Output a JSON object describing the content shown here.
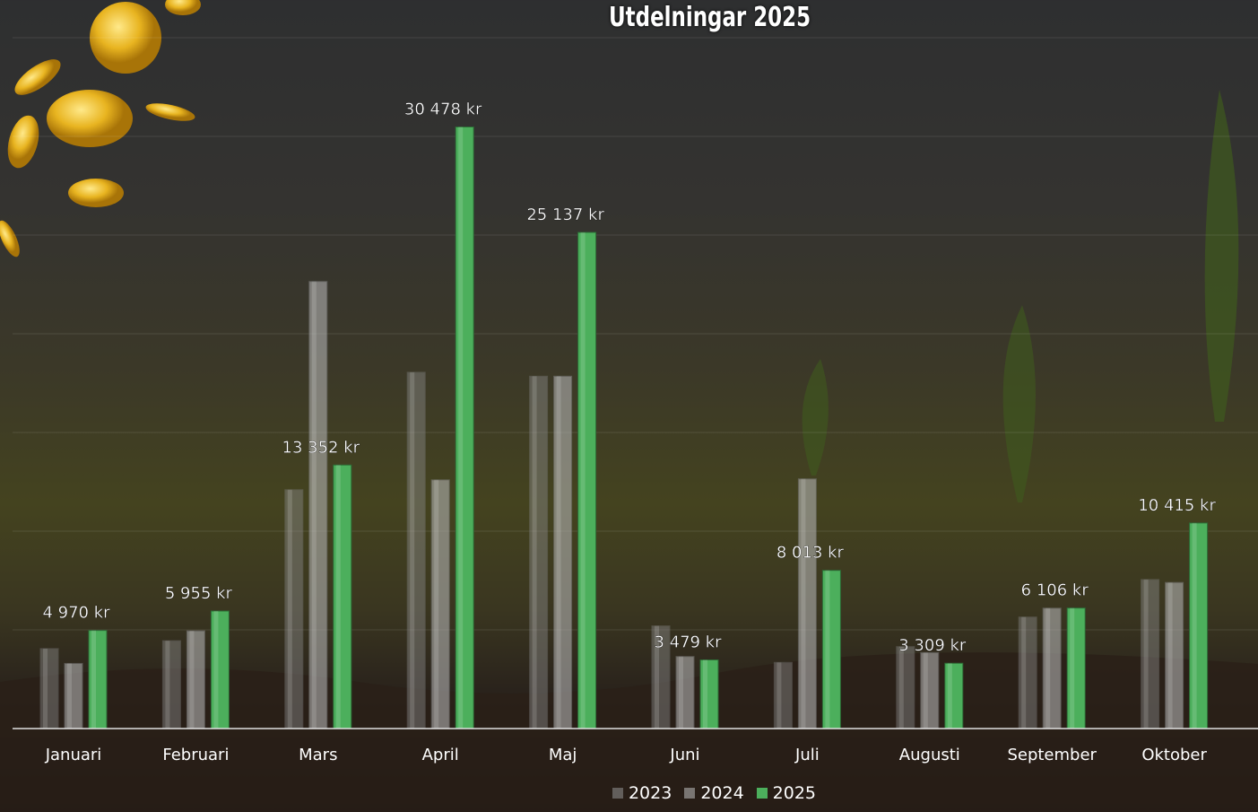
{
  "chart_data": {
    "type": "bar",
    "title": "Utdelningar 2025",
    "categories": [
      "Januari",
      "Februari",
      "Mars",
      "April",
      "Maj",
      "Juni",
      "Juli",
      "Augusti",
      "September",
      "Oktober"
    ],
    "series": [
      {
        "name": "2023",
        "values": [
          4050,
          4450,
          12100,
          18050,
          17850,
          5200,
          3350,
          4150,
          5650,
          7550
        ],
        "color": "#8a8a8a"
      },
      {
        "name": "2024",
        "values": [
          3300,
          4950,
          22650,
          12600,
          17850,
          3650,
          12650,
          3850,
          6100,
          7400
        ],
        "color": "#b0b0b0"
      },
      {
        "name": "2025",
        "values": [
          4970,
          5955,
          13352,
          30478,
          25137,
          3479,
          8013,
          3309,
          6106,
          10415
        ],
        "color": "#4caf5c"
      }
    ],
    "data_labels_2025": [
      "4 970 kr",
      "5 955 kr",
      "13 352 kr",
      "30 478 kr",
      "25 137 kr",
      "3 479 kr",
      "8 013 kr",
      "3 309 kr",
      "6 106 kr",
      "10 415 kr"
    ],
    "ylim": [
      0,
      35000
    ],
    "grid": true,
    "legend": "bottom"
  }
}
